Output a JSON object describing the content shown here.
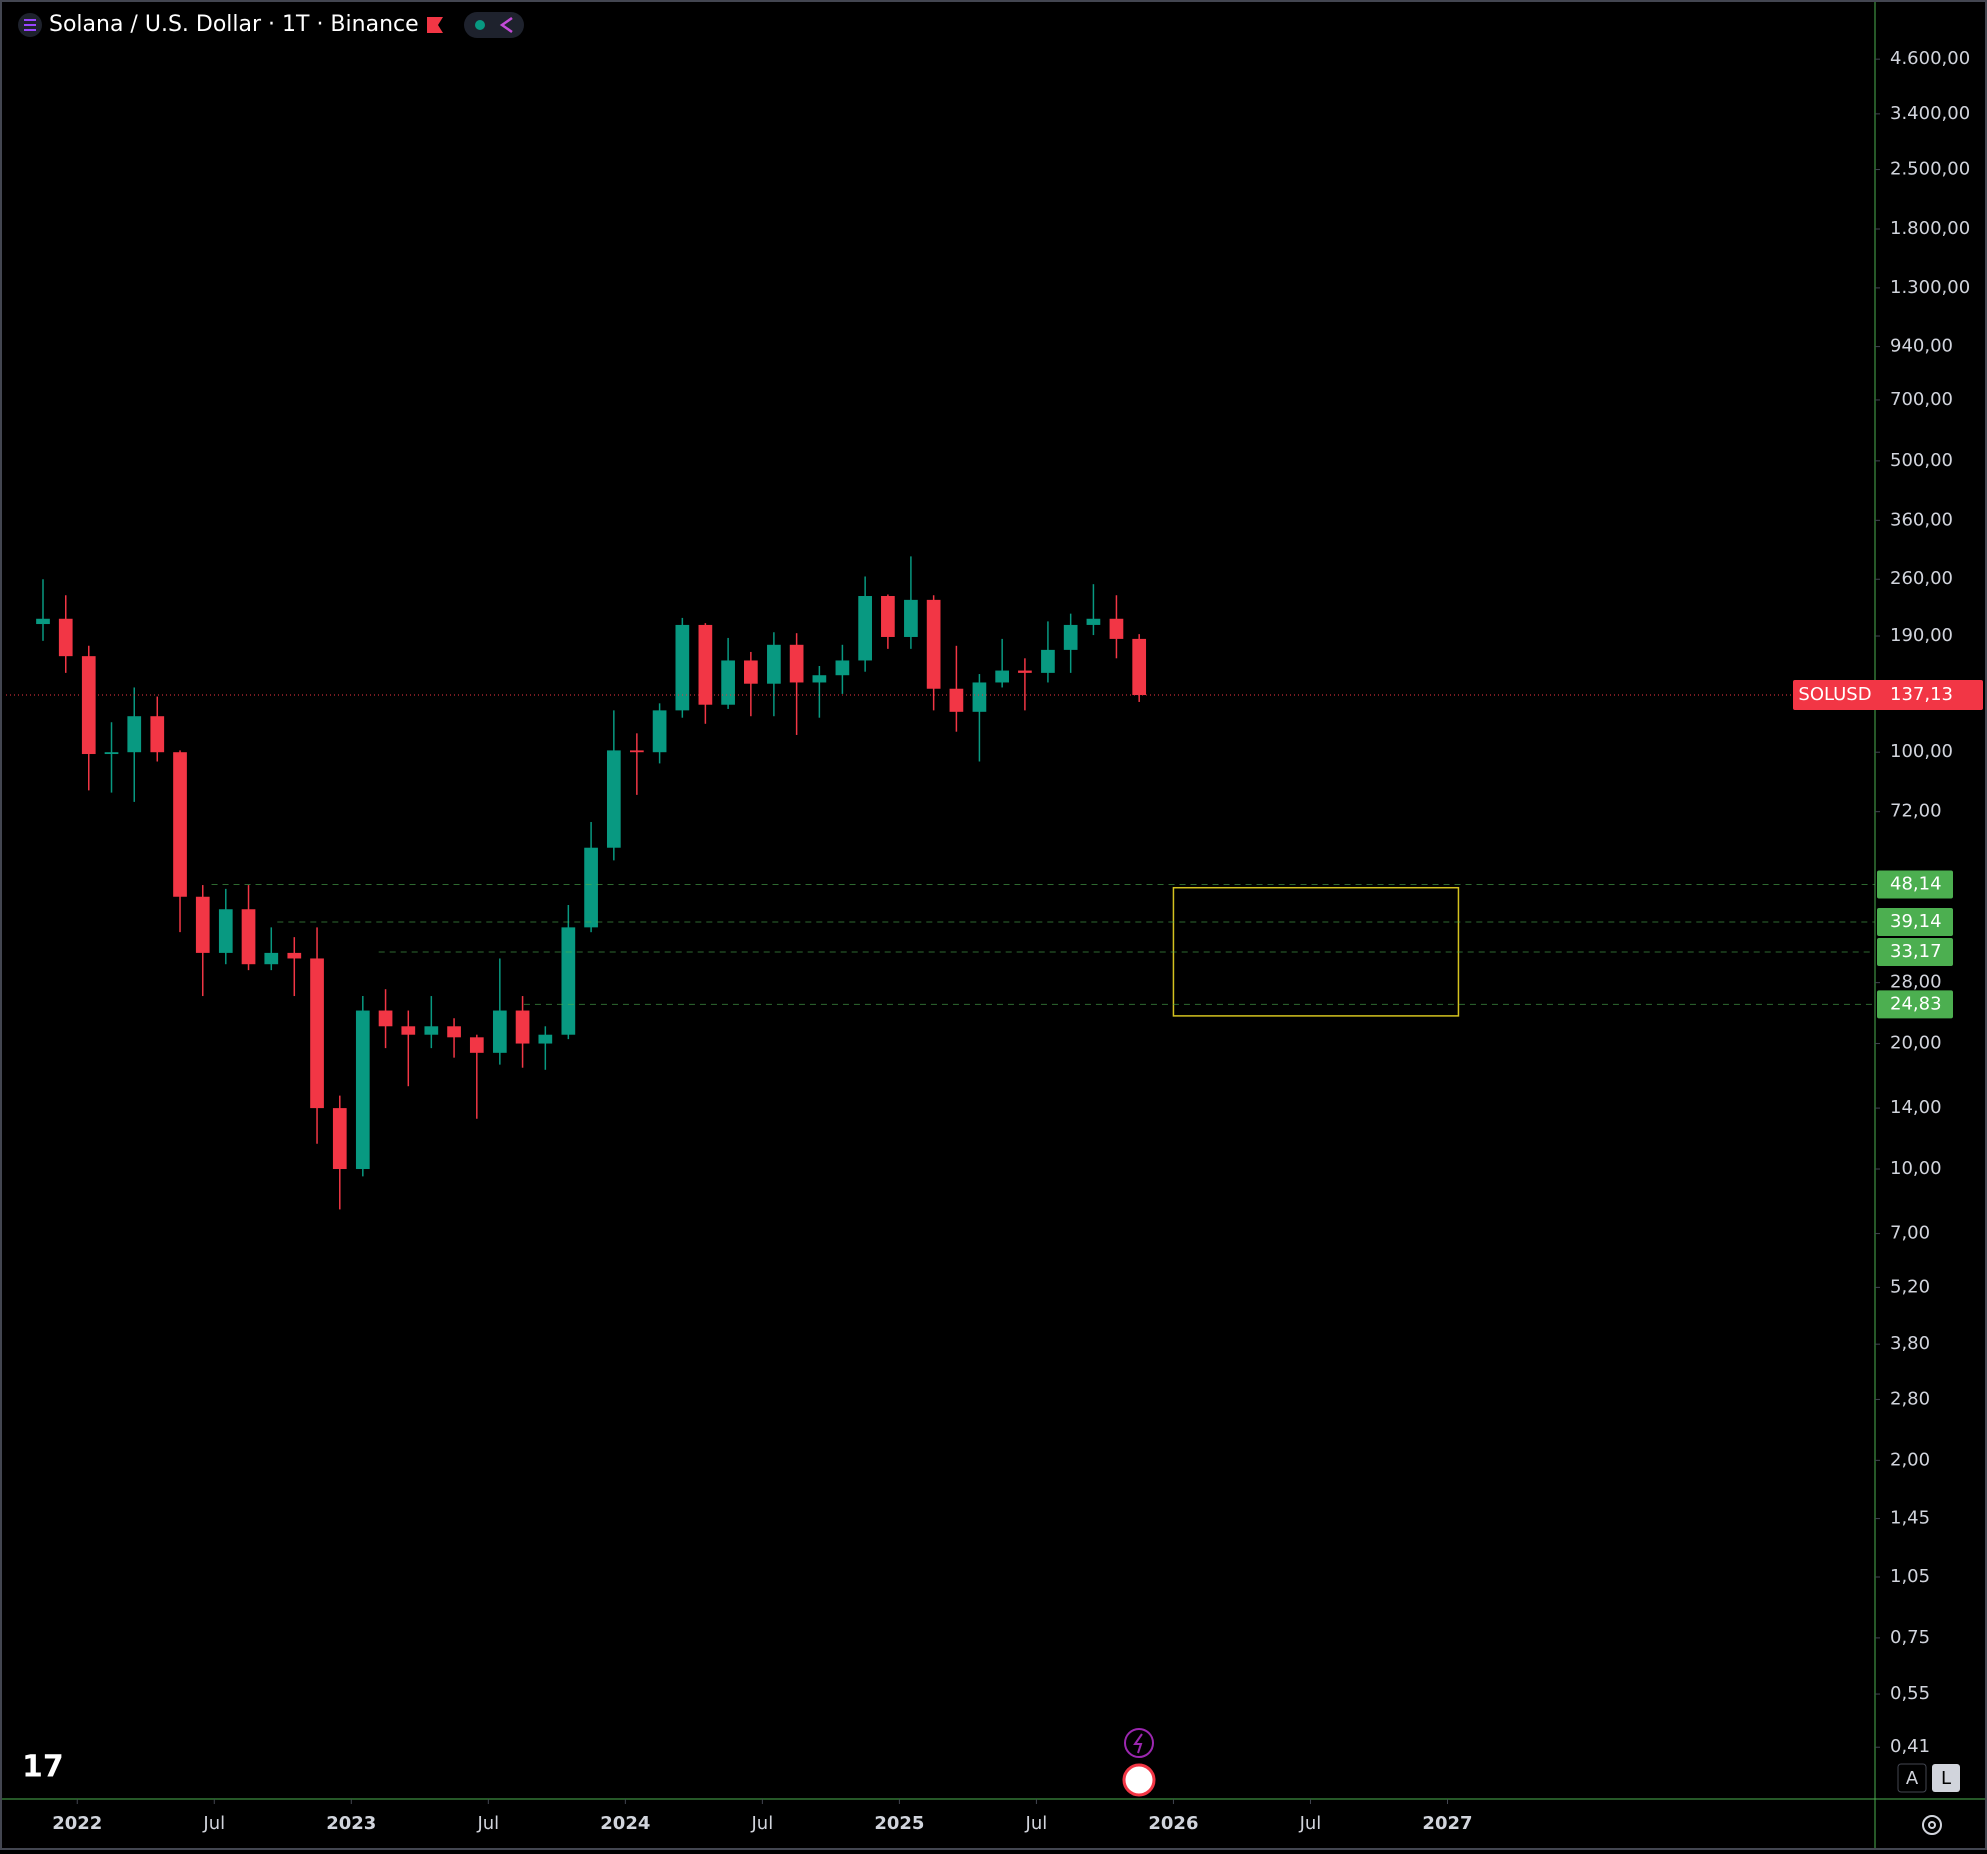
{
  "chart_data": {
    "type": "candlestick",
    "title": "Solana / U.S. Dollar · 1T · Binance",
    "log_scale": true,
    "grid": false,
    "up_color": "#089981",
    "down_color": "#f23645",
    "x": [
      2021.875,
      2021.958,
      2022.042,
      2022.125,
      2022.208,
      2022.292,
      2022.375,
      2022.458,
      2022.542,
      2022.625,
      2022.708,
      2022.792,
      2022.875,
      2022.958,
      2023.042,
      2023.125,
      2023.208,
      2023.292,
      2023.375,
      2023.458,
      2023.542,
      2023.625,
      2023.708,
      2023.792,
      2023.875,
      2023.958,
      2024.042,
      2024.125,
      2024.208,
      2024.292,
      2024.375,
      2024.458,
      2024.542,
      2024.625,
      2024.708,
      2024.792,
      2024.875,
      2024.958,
      2025.042,
      2025.125,
      2025.208,
      2025.292,
      2025.375,
      2025.458,
      2025.542,
      2025.625,
      2025.708,
      2025.792,
      2025.875
    ],
    "open": [
      203,
      209,
      170,
      99,
      100,
      122,
      100,
      45,
      33,
      42,
      31,
      33,
      32,
      14,
      10,
      24,
      22,
      21,
      22,
      20.7,
      19,
      24,
      20,
      21,
      38,
      59,
      101,
      100,
      126,
      202,
      130,
      166,
      146,
      181,
      147,
      153,
      166,
      237,
      189,
      232,
      142,
      125,
      147,
      157,
      155,
      176,
      202,
      209,
      187
    ],
    "high": [
      260,
      238,
      180,
      118,
      143,
      136,
      101,
      48,
      47,
      48,
      38,
      36,
      38,
      15,
      26,
      27,
      24,
      26,
      23,
      21,
      32,
      26,
      22,
      43,
      68,
      126,
      111,
      131,
      210,
      204,
      188,
      174,
      194,
      193,
      161,
      181,
      264,
      239,
      295,
      238,
      180,
      154,
      187,
      168,
      206,
      215,
      253,
      238,
      192
    ],
    "low": [
      185,
      155,
      81,
      80,
      76,
      95,
      37,
      26,
      31,
      30,
      30,
      26,
      11.5,
      8,
      9.6,
      19.5,
      15.8,
      19.5,
      18.5,
      13.2,
      17.8,
      17.5,
      17.3,
      20.5,
      37,
      55,
      79,
      94,
      121,
      117,
      127,
      122,
      122,
      110,
      121,
      138,
      156,
      177,
      177,
      126,
      112,
      95,
      143,
      126,
      147,
      155,
      191,
      168,
      132
    ],
    "close": [
      209,
      170,
      99,
      100,
      122,
      100,
      45,
      33,
      42,
      31,
      33,
      32,
      14,
      10,
      24,
      22,
      21,
      22,
      20.7,
      19,
      24,
      20,
      21,
      38,
      59,
      101,
      100,
      126,
      202,
      130,
      166,
      146,
      181,
      147,
      153,
      166,
      237,
      189,
      232,
      142,
      125,
      147,
      157,
      155,
      176,
      202,
      209,
      187,
      137.13
    ],
    "xlim": [
      2021.74,
      2028.56
    ],
    "xticks": [
      2022,
      {
        "value": 2022.5,
        "label": "Jul"
      },
      2023,
      {
        "value": 2023.5,
        "label": "Jul"
      },
      2024,
      {
        "value": 2024.5,
        "label": "Jul"
      },
      2025,
      {
        "value": 2025.5,
        "label": "Jul"
      },
      2026,
      {
        "value": 2026.5,
        "label": "Jul"
      },
      2027
    ],
    "ylim": [
      0.308,
      6170
    ],
    "yticks": [
      {
        "value": 0.41,
        "label": "0,41"
      },
      {
        "value": 0.55,
        "label": "0,55"
      },
      {
        "value": 0.75,
        "label": "0,75"
      },
      {
        "value": 1.05,
        "label": "1,05"
      },
      {
        "value": 1.45,
        "label": "1,45"
      },
      {
        "value": 2,
        "label": "2,00"
      },
      {
        "value": 2.8,
        "label": "2,80"
      },
      {
        "value": 3.8,
        "label": "3,80"
      },
      {
        "value": 5.2,
        "label": "5,20"
      },
      {
        "value": 7,
        "label": "7,00"
      },
      {
        "value": 10,
        "label": "10,00"
      },
      {
        "value": 14,
        "label": "14,00"
      },
      {
        "value": 20,
        "label": "20,00"
      },
      {
        "value": 28,
        "label": "28,00"
      },
      {
        "value": 72,
        "label": "72,00"
      },
      {
        "value": 100,
        "label": "100,00"
      },
      {
        "value": 190,
        "label": "190,00"
      },
      {
        "value": 260,
        "label": "260,00"
      },
      {
        "value": 360,
        "label": "360,00"
      },
      {
        "value": 500,
        "label": "500,00"
      },
      {
        "value": 700,
        "label": "700,00"
      },
      {
        "value": 940,
        "label": "940,00"
      },
      {
        "value": 1300,
        "label": "1.300,00"
      },
      {
        "value": 1800,
        "label": "1.800,00"
      },
      {
        "value": 2500,
        "label": "2.500,00"
      },
      {
        "value": 3400,
        "label": "3.400,00"
      },
      {
        "value": 4600,
        "label": "4.600,00"
      }
    ],
    "last_price": {
      "name": "SOLUSD",
      "value": 137.13,
      "label": "137,13",
      "color": "#f23645"
    },
    "levels": [
      {
        "value": 48.14,
        "label": "48,14",
        "x_start": 2022.49
      },
      {
        "value": 39.14,
        "label": "39,14",
        "x_start": 2022.73
      },
      {
        "value": 33.17,
        "label": "33,17",
        "x_start": 2023.1
      },
      {
        "value": 24.83,
        "label": "24,83",
        "x_start": 2023.63
      }
    ],
    "level_color": "#4caf50",
    "zone": {
      "x": [
        2026.0,
        2027.04
      ],
      "y": [
        23.3,
        47.3
      ],
      "color": "#d4c21f"
    },
    "controls": [
      "A",
      "L"
    ]
  }
}
